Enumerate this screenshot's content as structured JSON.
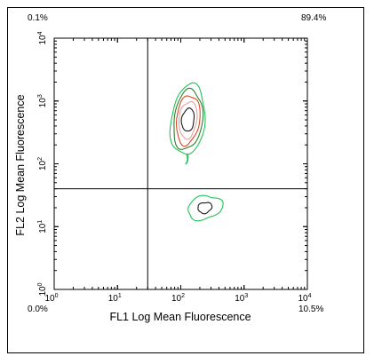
{
  "chart_data": {
    "type": "contour",
    "xlabel": "FL1 Log Mean Fluorescence",
    "ylabel": "FL2 Log Mean Fluorescence",
    "x_scale": "log",
    "y_scale": "log",
    "xlim": [
      1,
      10000
    ],
    "ylim": [
      1,
      10000
    ],
    "x_ticks": [
      1,
      10,
      100,
      1000,
      10000
    ],
    "y_ticks": [
      1,
      10,
      100,
      1000,
      10000
    ],
    "tick_labels": [
      "10",
      "10",
      "10",
      "10",
      "10"
    ],
    "tick_exponents": [
      "0",
      "1",
      "2",
      "3",
      "4"
    ],
    "quadrant_gate": {
      "x": 30,
      "y": 40
    },
    "quadrant_percentages": {
      "upper_left": "0.1%",
      "upper_right": "89.4%",
      "lower_left": "0.0%",
      "lower_right": "10.5%"
    },
    "populations": [
      {
        "center": {
          "x": 130,
          "y": 500
        },
        "contour_levels": 5,
        "contour_colors": [
          "#22c25a",
          "#2f7f2f",
          "#d84a2a",
          "#e8a0a0",
          "#1a1a1a"
        ]
      },
      {
        "center": {
          "x": 240,
          "y": 20
        },
        "contour_levels": 2,
        "contour_colors": [
          "#22c25a",
          "#1a1a1a"
        ]
      }
    ],
    "grid": false
  }
}
